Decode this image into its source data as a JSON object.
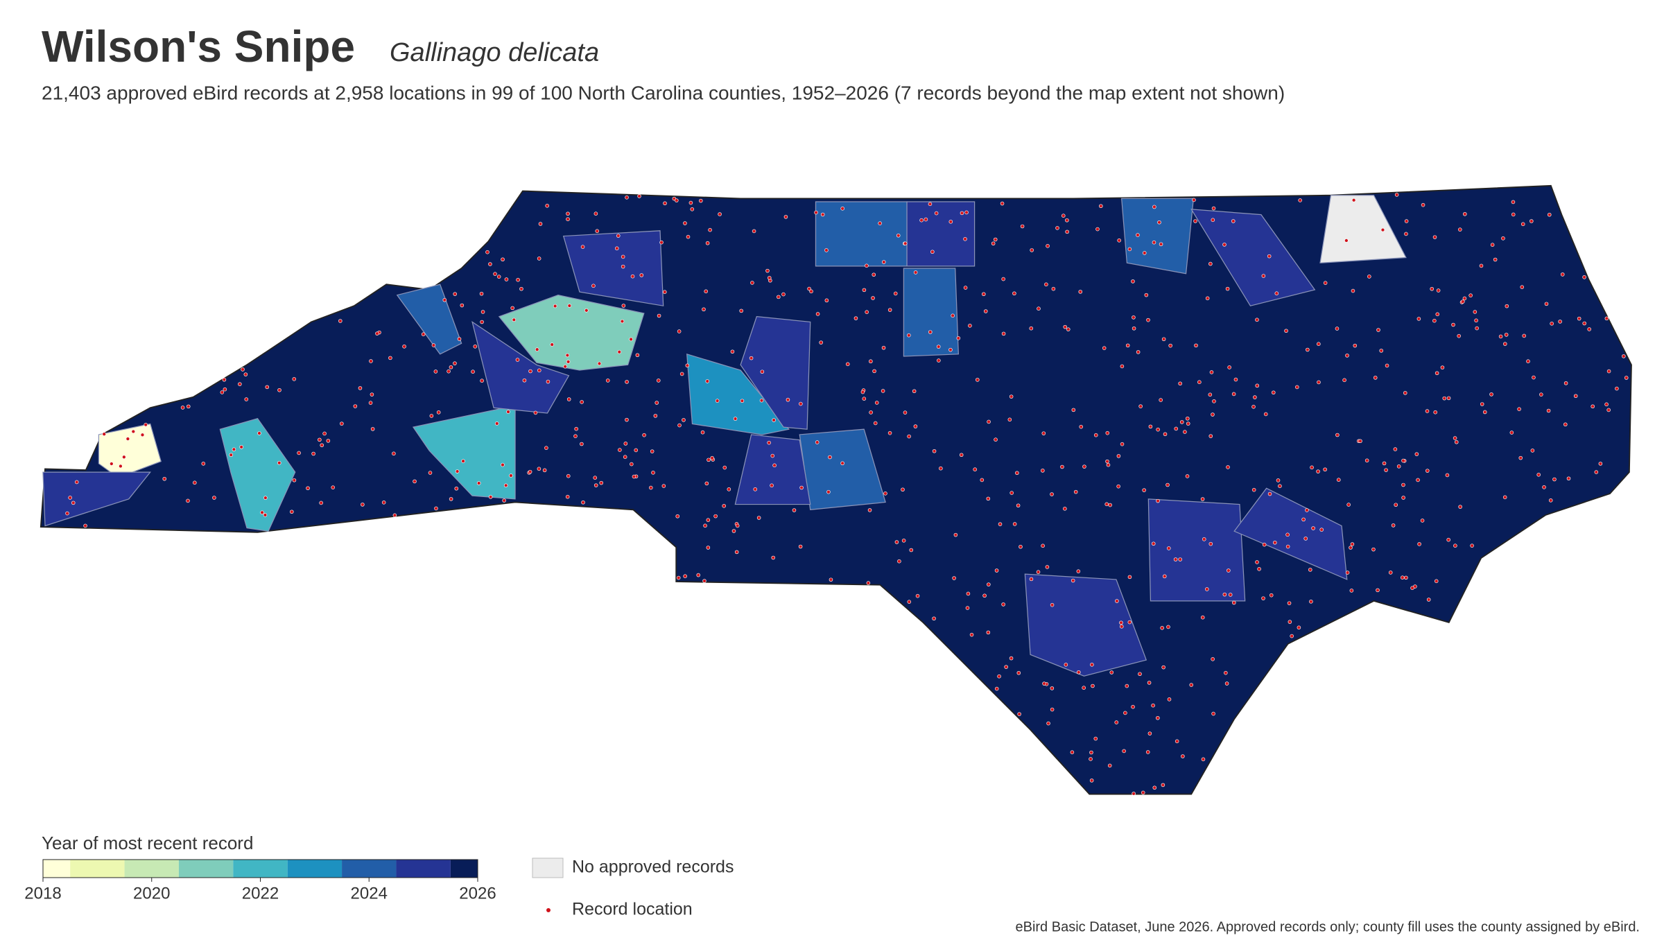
{
  "header": {
    "title": "Wilson's Snipe",
    "scientific_name": "Gallinago delicata",
    "subtitle": "21,403 approved eBird records at 2,958 locations in 99 of 100 North Carolina counties, 1952–2026 (7 records beyond the map extent not shown)"
  },
  "legend": {
    "title": "Year of most recent record",
    "range": [
      2018,
      2026
    ],
    "ticks": [
      2018,
      2020,
      2022,
      2024,
      2026
    ],
    "colors": [
      "#ffffd9",
      "#edf8b1",
      "#c7e9b4",
      "#7fcdbb",
      "#41b6c4",
      "#1d91c0",
      "#225ea8",
      "#253494",
      "#081d58"
    ],
    "no_records_label": "No approved records",
    "no_records_color": "#ececec",
    "record_label": "Record location",
    "record_color": "#d0121b"
  },
  "footer": "eBird Basic Dataset, June 2026. Approved records only; county fill uses the county assigned by eBird."
}
